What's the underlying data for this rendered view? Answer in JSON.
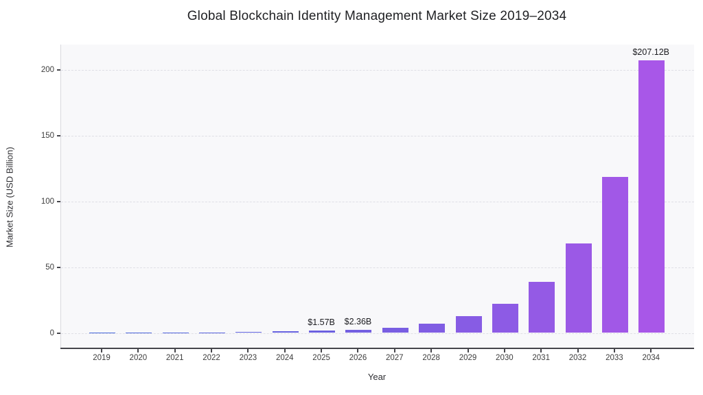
{
  "chart_data": {
    "type": "bar",
    "title": "Global Blockchain Identity Management Market Size 2019–2034",
    "xlabel": "Year",
    "ylabel": "Market Size (USD Billion)",
    "categories": [
      "2019",
      "2020",
      "2021",
      "2022",
      "2023",
      "2024",
      "2025",
      "2026",
      "2027",
      "2028",
      "2029",
      "2030",
      "2031",
      "2032",
      "2033",
      "2034"
    ],
    "values": [
      0.14,
      0.21,
      0.31,
      0.47,
      0.7,
      1.05,
      1.57,
      2.36,
      4.13,
      7.22,
      12.64,
      22.12,
      38.7,
      67.71,
      118.45,
      207.12
    ],
    "data_labels": {
      "2025": "$1.57B",
      "2026": "$2.36B",
      "2034": "$207.12B"
    },
    "yticks": [
      0,
      50,
      100,
      150,
      200
    ],
    "ylim": [
      -11.7,
      219
    ],
    "grid": "horizontal-dashed",
    "legend": "none",
    "colors": {
      "bar_gradient_start": "#4466db",
      "bar_gradient_end": "#a857e8",
      "plot_background": "#f8f8fa",
      "gridline": "#dfdfe5",
      "axis_line": "#45454a",
      "tick_label": "#3d3d3d",
      "title_text": "#202124"
    }
  }
}
